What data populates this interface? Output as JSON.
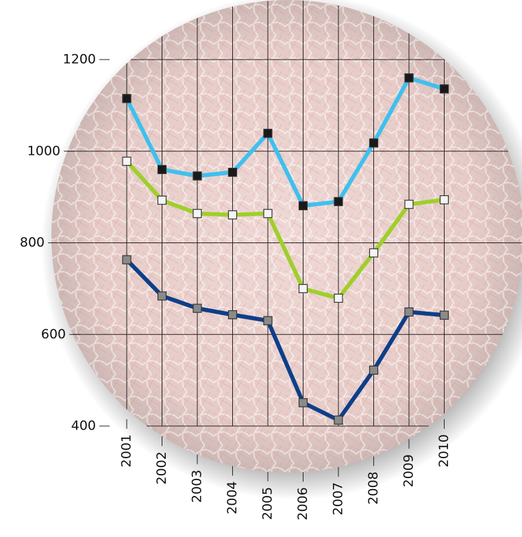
{
  "chart_data": {
    "type": "line",
    "categories": [
      "2001",
      "2002",
      "2003",
      "2004",
      "2005",
      "2006",
      "2007",
      "2008",
      "2009",
      "2010"
    ],
    "series": [
      {
        "color": "#3fc0ee",
        "marker_color": "#1a1a1a",
        "values": [
          1115,
          960,
          946,
          954,
          1039,
          881,
          890,
          1018,
          1160,
          1136
        ]
      },
      {
        "color": "#9fcf2c",
        "marker_color": "#f4f4f4",
        "values": [
          978,
          893,
          864,
          861,
          864,
          700,
          679,
          778,
          884,
          894
        ]
      },
      {
        "color": "#0d3f8a",
        "marker_color": "#8a8a8a",
        "values": [
          763,
          684,
          657,
          643,
          630,
          451,
          413,
          522,
          649,
          642
        ]
      }
    ],
    "ylim": [
      400,
      1200
    ],
    "yticks": [
      400,
      600,
      800,
      1000,
      1200
    ],
    "grid": true
  }
}
